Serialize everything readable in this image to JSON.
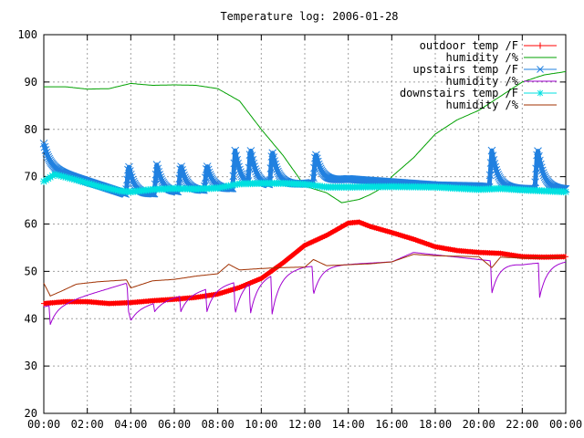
{
  "chart_data": {
    "type": "line",
    "title": "Temperature log: 2006-01-28",
    "xlabel": "",
    "ylabel": "",
    "xlim": [
      0,
      24
    ],
    "ylim": [
      20,
      100
    ],
    "xticks": [
      {
        "v": 0,
        "label": "00:00"
      },
      {
        "v": 2,
        "label": "02:00"
      },
      {
        "v": 4,
        "label": "04:00"
      },
      {
        "v": 6,
        "label": "06:00"
      },
      {
        "v": 8,
        "label": "08:00"
      },
      {
        "v": 10,
        "label": "10:00"
      },
      {
        "v": 12,
        "label": "12:00"
      },
      {
        "v": 14,
        "label": "14:00"
      },
      {
        "v": 16,
        "label": "16:00"
      },
      {
        "v": 18,
        "label": "18:00"
      },
      {
        "v": 20,
        "label": "20:00"
      },
      {
        "v": 22,
        "label": "22:00"
      },
      {
        "v": 24,
        "label": "00:00"
      }
    ],
    "yticks": [
      20,
      30,
      40,
      50,
      60,
      70,
      80,
      90,
      100
    ],
    "grid": true,
    "legend": "top-right",
    "series": [
      {
        "name": "outdoor temp /F",
        "color": "#ff0000",
        "marker": "plus",
        "style": "thick",
        "points": [
          [
            0,
            43.2
          ],
          [
            1,
            43.6
          ],
          [
            2,
            43.6
          ],
          [
            3,
            43.2
          ],
          [
            4,
            43.4
          ],
          [
            5,
            43.8
          ],
          [
            6,
            44.1
          ],
          [
            7,
            44.5
          ],
          [
            8,
            45.2
          ],
          [
            9,
            46.6
          ],
          [
            10,
            48.5
          ],
          [
            11,
            51.8
          ],
          [
            12,
            55.5
          ],
          [
            13,
            57.6
          ],
          [
            14,
            60.2
          ],
          [
            14.5,
            60.4
          ],
          [
            15,
            59.5
          ],
          [
            16,
            58.2
          ],
          [
            17,
            56.8
          ],
          [
            18,
            55.2
          ],
          [
            19,
            54.4
          ],
          [
            20,
            54.0
          ],
          [
            21,
            53.8
          ],
          [
            22,
            53.1
          ],
          [
            23,
            53.0
          ],
          [
            24,
            53.1
          ]
        ]
      },
      {
        "name": "humidity /%",
        "color": "#00a000",
        "marker": "none",
        "style": "thin",
        "points": [
          [
            0,
            89.0
          ],
          [
            1,
            89.0
          ],
          [
            2,
            88.5
          ],
          [
            3,
            88.6
          ],
          [
            4,
            89.7
          ],
          [
            5,
            89.3
          ],
          [
            6,
            89.4
          ],
          [
            7,
            89.3
          ],
          [
            8,
            88.6
          ],
          [
            9,
            86.0
          ],
          [
            10,
            80.0
          ],
          [
            11,
            74.5
          ],
          [
            12,
            68.0
          ],
          [
            13,
            66.6
          ],
          [
            13.7,
            64.5
          ],
          [
            14.5,
            65.2
          ],
          [
            15,
            66.2
          ],
          [
            15.7,
            68.0
          ],
          [
            16,
            70.0
          ],
          [
            17,
            74.0
          ],
          [
            18,
            79.0
          ],
          [
            19,
            82.0
          ],
          [
            20,
            84.0
          ],
          [
            21,
            87.0
          ],
          [
            22,
            90.0
          ],
          [
            23,
            91.5
          ],
          [
            24,
            92.2
          ]
        ]
      },
      {
        "name": "upstairs temp /F",
        "color": "#2080e0",
        "marker": "cross",
        "style": "thick",
        "cycles": [
          [
            0,
            77
          ],
          [
            3.9,
            72.5
          ],
          [
            5.2,
            72.5
          ],
          [
            6.3,
            72.5
          ],
          [
            7.5,
            72.5
          ],
          [
            8.8,
            75.5
          ],
          [
            9.5,
            76
          ],
          [
            10.5,
            75.5
          ],
          [
            12.5,
            75
          ],
          [
            20.6,
            75.5
          ],
          [
            22.7,
            76
          ]
        ],
        "floor": [
          [
            0,
            72
          ],
          [
            4,
            66
          ],
          [
            12,
            68.5
          ],
          [
            14,
            69.5
          ],
          [
            18,
            68.2
          ],
          [
            20,
            68.0
          ],
          [
            21,
            67.5
          ],
          [
            24,
            67.3
          ]
        ]
      },
      {
        "name": "humidity /%",
        "color": "#a000d0",
        "marker": "none",
        "style": "thin",
        "dips": [
          [
            0.3,
            38.8
          ],
          [
            3.9,
            41.5
          ],
          [
            5.1,
            41.5
          ],
          [
            6.3,
            41.5
          ],
          [
            7.5,
            41.5
          ],
          [
            8.8,
            41.0
          ],
          [
            9.5,
            41.0
          ],
          [
            10.5,
            41.0
          ],
          [
            12.4,
            45
          ],
          [
            20.6,
            45.3
          ],
          [
            22.8,
            44.5
          ]
        ],
        "base": [
          [
            0,
            42.5
          ],
          [
            1,
            43.5
          ],
          [
            2,
            45.0
          ],
          [
            3.8,
            47.5
          ],
          [
            4,
            42
          ],
          [
            8,
            47
          ],
          [
            9,
            48
          ],
          [
            11,
            50
          ],
          [
            12,
            51
          ],
          [
            14,
            51.5
          ],
          [
            16,
            52
          ],
          [
            17,
            54
          ],
          [
            18,
            53.5
          ],
          [
            20,
            52.5
          ],
          [
            22,
            51.5
          ],
          [
            24,
            52.2
          ]
        ]
      },
      {
        "name": "downstairs temp /F",
        "color": "#00e0e0",
        "marker": "star",
        "style": "thick",
        "points": [
          [
            0,
            69.0
          ],
          [
            0.5,
            70.5
          ],
          [
            1.5,
            69.3
          ],
          [
            2.5,
            68.0
          ],
          [
            3.5,
            67.0
          ],
          [
            4,
            66.8
          ],
          [
            5,
            67.3
          ],
          [
            6,
            67.5
          ],
          [
            7,
            67.4
          ],
          [
            8,
            67.6
          ],
          [
            9,
            68.5
          ],
          [
            10,
            68.6
          ],
          [
            11,
            68.6
          ],
          [
            12,
            68.4
          ],
          [
            13,
            67.8
          ],
          [
            14,
            67.8
          ],
          [
            16,
            67.9
          ],
          [
            18,
            67.8
          ],
          [
            20,
            67.3
          ],
          [
            21,
            67.5
          ],
          [
            22,
            67.2
          ],
          [
            23,
            67.0
          ],
          [
            24,
            66.8
          ]
        ]
      },
      {
        "name": "humidity /%",
        "color": "#a03000",
        "marker": "none",
        "style": "thin",
        "points": [
          [
            0,
            47.5
          ],
          [
            0.3,
            44.8
          ],
          [
            0.8,
            45.8
          ],
          [
            1.5,
            47.3
          ],
          [
            2.5,
            47.8
          ],
          [
            3.8,
            48.2
          ],
          [
            4,
            46.5
          ],
          [
            5,
            48
          ],
          [
            6,
            48.3
          ],
          [
            7,
            49.0
          ],
          [
            8,
            49.5
          ],
          [
            8.5,
            51.5
          ],
          [
            9,
            50.3
          ],
          [
            10,
            50.6
          ],
          [
            11,
            50.8
          ],
          [
            12,
            50.9
          ],
          [
            12.4,
            52.5
          ],
          [
            13,
            51.2
          ],
          [
            14,
            51.4
          ],
          [
            15,
            51.6
          ],
          [
            16,
            52.0
          ],
          [
            17,
            53.6
          ],
          [
            18,
            53.3
          ],
          [
            19,
            53.2
          ],
          [
            20,
            53.1
          ],
          [
            20.6,
            50.8
          ],
          [
            21,
            53.0
          ],
          [
            22,
            52.8
          ],
          [
            23,
            52.9
          ],
          [
            24,
            53.0
          ]
        ]
      }
    ]
  }
}
